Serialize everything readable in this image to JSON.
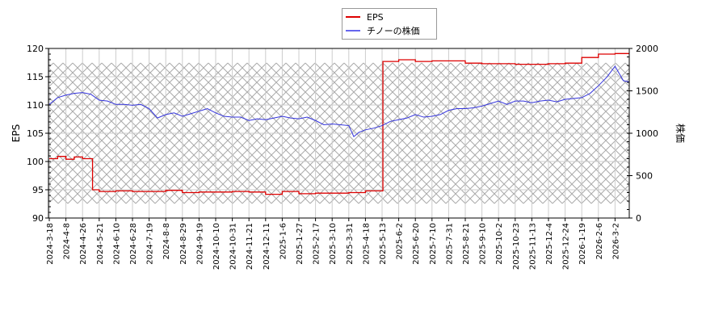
{
  "legend": {
    "items": [
      {
        "label": "EPS",
        "color": "#dd0000"
      },
      {
        "label": "チノーの株価",
        "color": "#3333dd"
      }
    ]
  },
  "axes": {
    "left_label": "EPS",
    "right_label": "株価",
    "left_ticks": [
      "90",
      "95",
      "100",
      "105",
      "110",
      "115",
      "120"
    ],
    "right_ticks": [
      "0",
      "500",
      "1000",
      "1500",
      "2000"
    ]
  },
  "chart_data": {
    "type": "line",
    "title": "",
    "xlabel": "",
    "ylabel": "EPS",
    "y2label": "株価",
    "ylim": [
      90,
      120
    ],
    "y2lim": [
      0,
      2000
    ],
    "grid": true,
    "legend_position": "top-center",
    "shaded_band_y2": [
      170,
      1830
    ],
    "x_ticks": [
      "2024-3-18",
      "2024-4-8",
      "2024-4-26",
      "2024-5-21",
      "2024-6-10",
      "2024-6-28",
      "2024-7-19",
      "2024-8-8",
      "2024-8-29",
      "2024-9-19",
      "2024-10-10",
      "2024-10-31",
      "2024-11-21",
      "2024-12-11",
      "2025-1-6",
      "2025-1-27",
      "2025-2-17",
      "2025-3-10",
      "2025-3-31",
      "2025-4-18",
      "2025-5-13",
      "2025-6-2",
      "2025-6-20",
      "2025-7-10",
      "2025-7-31",
      "2025-8-21",
      "2025-9-10",
      "2025-10-2",
      "2025-10-23",
      "2025-11-13",
      "2025-12-4",
      "2025-12-24",
      "2026-1-19",
      "2026-2-6",
      "2026-3-2"
    ],
    "series": [
      {
        "name": "EPS",
        "axis": "left",
        "color": "#dd0000",
        "x_index": [
          0,
          0.5,
          1,
          1.5,
          2,
          2.5,
          2.6,
          3,
          4,
          5,
          6,
          7,
          8,
          9,
          10,
          11,
          12,
          13,
          14,
          15,
          16,
          17,
          18,
          19,
          20,
          20.05,
          21,
          22,
          23,
          24,
          25,
          26,
          27,
          28,
          29,
          30,
          31,
          32,
          33,
          34,
          35
        ],
        "values": [
          100.5,
          100.9,
          100.4,
          100.8,
          100.5,
          100.5,
          95.0,
          94.7,
          94.8,
          94.7,
          94.7,
          94.9,
          94.5,
          94.6,
          94.6,
          94.7,
          94.6,
          94.2,
          94.7,
          94.3,
          94.4,
          94.4,
          94.5,
          94.8,
          94.8,
          117.7,
          118.0,
          117.7,
          117.8,
          117.8,
          117.4,
          117.3,
          117.3,
          117.2,
          117.2,
          117.3,
          117.4,
          118.4,
          119.0,
          119.1,
          118.9
        ]
      },
      {
        "name": "チノーの株価",
        "axis": "right",
        "color": "#3333dd",
        "x_index": [
          0,
          0.5,
          1,
          1.5,
          2,
          2.5,
          3,
          3.5,
          4,
          4.5,
          5,
          5.5,
          6,
          6.5,
          7,
          7.5,
          8,
          8.5,
          9,
          9.5,
          10,
          10.5,
          11,
          11.5,
          12,
          12.5,
          13,
          13.5,
          14,
          14.5,
          15,
          15.5,
          16,
          16.5,
          17,
          17.5,
          18,
          18.3,
          18.6,
          19,
          19.5,
          20,
          20.5,
          21,
          21.5,
          22,
          22.5,
          23,
          23.5,
          24,
          24.5,
          25,
          25.5,
          26,
          26.5,
          27,
          27.5,
          28,
          28.5,
          29,
          29.5,
          30,
          30.5,
          31,
          31.5,
          32,
          32.5,
          33,
          33.5,
          34,
          34.5,
          35
        ],
        "values": [
          1340,
          1420,
          1450,
          1470,
          1480,
          1460,
          1390,
          1380,
          1340,
          1340,
          1330,
          1340,
          1290,
          1180,
          1220,
          1240,
          1200,
          1230,
          1260,
          1290,
          1240,
          1200,
          1190,
          1190,
          1150,
          1170,
          1160,
          1180,
          1200,
          1180,
          1170,
          1190,
          1150,
          1100,
          1110,
          1100,
          1090,
          960,
          1010,
          1040,
          1060,
          1090,
          1140,
          1160,
          1180,
          1220,
          1190,
          1200,
          1220,
          1270,
          1290,
          1290,
          1300,
          1320,
          1350,
          1380,
          1340,
          1380,
          1380,
          1360,
          1380,
          1390,
          1370,
          1400,
          1410,
          1420,
          1470,
          1560,
          1660,
          1790,
          1620,
          1600
        ]
      }
    ]
  }
}
